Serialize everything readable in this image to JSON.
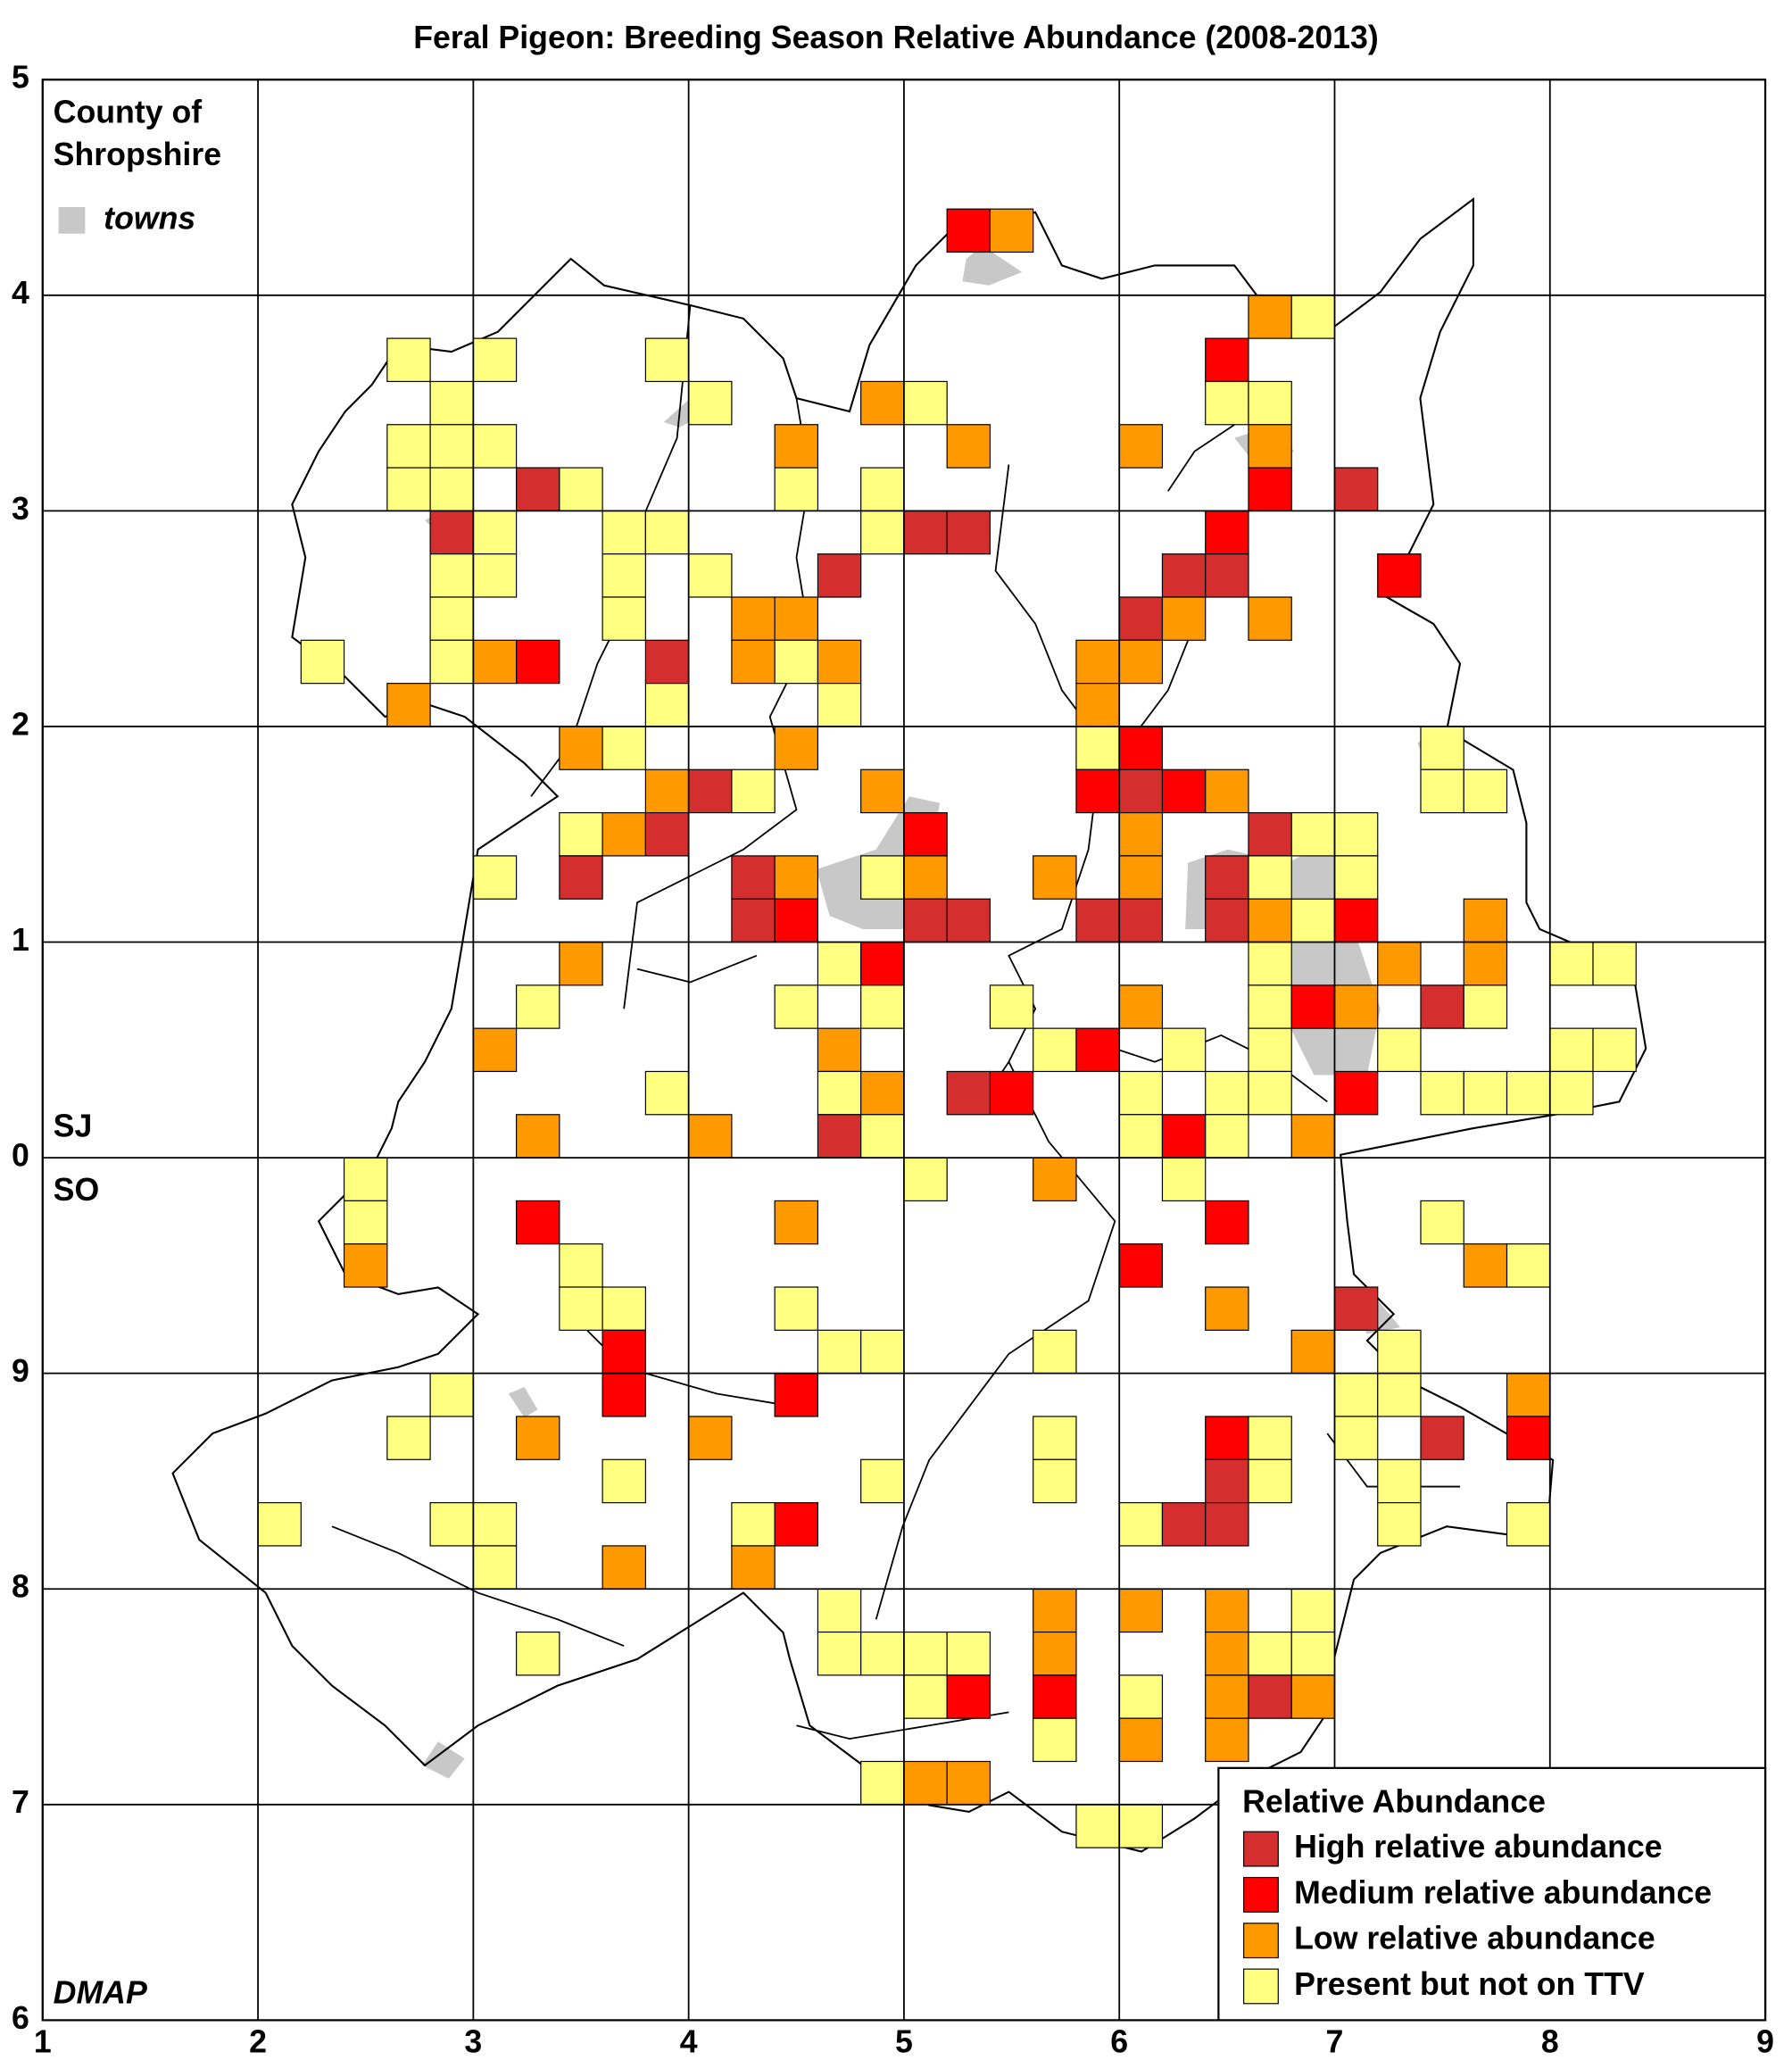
{
  "map": {
    "title": "Feral Pigeon: Breeding Season Relative Abundance (2008-2013)",
    "county_line1": "County of",
    "county_line2": "Shropshire",
    "towns_label": "towns",
    "grid_north": "SJ",
    "grid_south": "SO",
    "credit": "DMAP",
    "xticks": [
      "1",
      "2",
      "3",
      "4",
      "5",
      "6",
      "7",
      "8",
      "9"
    ],
    "yticks": [
      "5",
      "4",
      "3",
      "2",
      "1",
      "0",
      "9",
      "8",
      "7",
      "6"
    ],
    "legend": {
      "title": "Relative Abundance",
      "levels": [
        {
          "name": "High relative abundance",
          "color": "#d42e2e"
        },
        {
          "name": "Medium relative abundance",
          "color": "#ff0000"
        },
        {
          "name": "Low relative abundance",
          "color": "#ff9900"
        },
        {
          "name": "Present but not on TTV",
          "color": "#ffff80"
        }
      ]
    },
    "cells": [
      [
        21,
        3,
        1
      ],
      [
        22,
        3,
        2
      ],
      [
        28,
        5,
        2
      ],
      [
        29,
        5,
        3
      ],
      [
        8,
        6,
        3
      ],
      [
        10,
        6,
        3
      ],
      [
        14,
        6,
        3
      ],
      [
        27,
        6,
        1
      ],
      [
        9,
        7,
        3
      ],
      [
        15,
        7,
        3
      ],
      [
        19,
        7,
        2
      ],
      [
        20,
        7,
        3
      ],
      [
        27,
        7,
        3
      ],
      [
        28,
        7,
        3
      ],
      [
        8,
        8,
        3
      ],
      [
        9,
        8,
        3
      ],
      [
        10,
        8,
        3
      ],
      [
        17,
        8,
        2
      ],
      [
        21,
        8,
        2
      ],
      [
        25,
        8,
        2
      ],
      [
        28,
        8,
        2
      ],
      [
        8,
        9,
        3
      ],
      [
        9,
        9,
        3
      ],
      [
        11,
        9,
        0
      ],
      [
        12,
        9,
        3
      ],
      [
        17,
        9,
        3
      ],
      [
        19,
        9,
        3
      ],
      [
        28,
        9,
        1
      ],
      [
        30,
        9,
        0
      ],
      [
        9,
        10,
        0
      ],
      [
        10,
        10,
        3
      ],
      [
        13,
        10,
        3
      ],
      [
        14,
        10,
        3
      ],
      [
        19,
        10,
        3
      ],
      [
        20,
        10,
        0
      ],
      [
        21,
        10,
        0
      ],
      [
        27,
        10,
        1
      ],
      [
        9,
        11,
        3
      ],
      [
        10,
        11,
        3
      ],
      [
        13,
        11,
        3
      ],
      [
        15,
        11,
        3
      ],
      [
        18,
        11,
        0
      ],
      [
        26,
        11,
        0
      ],
      [
        27,
        11,
        0
      ],
      [
        31,
        11,
        1
      ],
      [
        9,
        12,
        3
      ],
      [
        13,
        12,
        3
      ],
      [
        16,
        12,
        2
      ],
      [
        17,
        12,
        2
      ],
      [
        25,
        12,
        0
      ],
      [
        26,
        12,
        2
      ],
      [
        28,
        12,
        2
      ],
      [
        6,
        13,
        3
      ],
      [
        9,
        13,
        3
      ],
      [
        10,
        13,
        2
      ],
      [
        11,
        13,
        1
      ],
      [
        14,
        13,
        0
      ],
      [
        16,
        13,
        2
      ],
      [
        17,
        13,
        3
      ],
      [
        18,
        13,
        2
      ],
      [
        24,
        13,
        2
      ],
      [
        25,
        13,
        2
      ],
      [
        8,
        14,
        2
      ],
      [
        14,
        14,
        3
      ],
      [
        18,
        14,
        3
      ],
      [
        24,
        14,
        2
      ],
      [
        12,
        15,
        2
      ],
      [
        13,
        15,
        3
      ],
      [
        17,
        15,
        2
      ],
      [
        24,
        15,
        3
      ],
      [
        25,
        15,
        1
      ],
      [
        32,
        15,
        3
      ],
      [
        14,
        16,
        2
      ],
      [
        15,
        16,
        0
      ],
      [
        16,
        16,
        3
      ],
      [
        19,
        16,
        2
      ],
      [
        24,
        16,
        1
      ],
      [
        25,
        16,
        0
      ],
      [
        26,
        16,
        1
      ],
      [
        27,
        16,
        2
      ],
      [
        32,
        16,
        3
      ],
      [
        33,
        16,
        3
      ],
      [
        12,
        17,
        3
      ],
      [
        13,
        17,
        2
      ],
      [
        14,
        17,
        0
      ],
      [
        20,
        17,
        1
      ],
      [
        25,
        17,
        2
      ],
      [
        28,
        17,
        0
      ],
      [
        29,
        17,
        3
      ],
      [
        30,
        17,
        3
      ],
      [
        10,
        18,
        3
      ],
      [
        12,
        18,
        0
      ],
      [
        16,
        18,
        0
      ],
      [
        17,
        18,
        2
      ],
      [
        19,
        18,
        3
      ],
      [
        20,
        18,
        2
      ],
      [
        23,
        18,
        2
      ],
      [
        25,
        18,
        2
      ],
      [
        27,
        18,
        0
      ],
      [
        28,
        18,
        3
      ],
      [
        30,
        18,
        3
      ],
      [
        16,
        19,
        0
      ],
      [
        17,
        19,
        1
      ],
      [
        20,
        19,
        0
      ],
      [
        21,
        19,
        0
      ],
      [
        24,
        19,
        0
      ],
      [
        25,
        19,
        0
      ],
      [
        27,
        19,
        0
      ],
      [
        28,
        19,
        2
      ],
      [
        29,
        19,
        3
      ],
      [
        30,
        19,
        1
      ],
      [
        33,
        19,
        2
      ],
      [
        12,
        20,
        2
      ],
      [
        18,
        20,
        3
      ],
      [
        19,
        20,
        1
      ],
      [
        28,
        20,
        3
      ],
      [
        31,
        20,
        2
      ],
      [
        33,
        20,
        2
      ],
      [
        35,
        20,
        3
      ],
      [
        36,
        20,
        3
      ],
      [
        11,
        21,
        3
      ],
      [
        17,
        21,
        3
      ],
      [
        19,
        21,
        3
      ],
      [
        22,
        21,
        3
      ],
      [
        25,
        21,
        2
      ],
      [
        28,
        21,
        3
      ],
      [
        29,
        21,
        1
      ],
      [
        30,
        21,
        2
      ],
      [
        32,
        21,
        0
      ],
      [
        33,
        21,
        3
      ],
      [
        10,
        22,
        2
      ],
      [
        18,
        22,
        2
      ],
      [
        23,
        22,
        3
      ],
      [
        24,
        22,
        1
      ],
      [
        26,
        22,
        3
      ],
      [
        28,
        22,
        3
      ],
      [
        31,
        22,
        3
      ],
      [
        35,
        22,
        3
      ],
      [
        36,
        22,
        3
      ],
      [
        14,
        23,
        3
      ],
      [
        18,
        23,
        3
      ],
      [
        19,
        23,
        2
      ],
      [
        21,
        23,
        0
      ],
      [
        22,
        23,
        1
      ],
      [
        25,
        23,
        3
      ],
      [
        27,
        23,
        3
      ],
      [
        28,
        23,
        3
      ],
      [
        30,
        23,
        1
      ],
      [
        32,
        23,
        3
      ],
      [
        33,
        23,
        3
      ],
      [
        34,
        23,
        3
      ],
      [
        35,
        23,
        3
      ],
      [
        11,
        24,
        2
      ],
      [
        15,
        24,
        2
      ],
      [
        18,
        24,
        0
      ],
      [
        19,
        24,
        3
      ],
      [
        25,
        24,
        3
      ],
      [
        26,
        24,
        1
      ],
      [
        27,
        24,
        3
      ],
      [
        29,
        24,
        2
      ],
      [
        7,
        25,
        3
      ],
      [
        20,
        25,
        3
      ],
      [
        23,
        25,
        2
      ],
      [
        26,
        25,
        3
      ],
      [
        7,
        26,
        3
      ],
      [
        11,
        26,
        1
      ],
      [
        17,
        26,
        2
      ],
      [
        27,
        26,
        1
      ],
      [
        32,
        26,
        3
      ],
      [
        7,
        27,
        2
      ],
      [
        12,
        27,
        3
      ],
      [
        25,
        27,
        1
      ],
      [
        33,
        27,
        2
      ],
      [
        34,
        27,
        3
      ],
      [
        12,
        28,
        3
      ],
      [
        13,
        28,
        3
      ],
      [
        17,
        28,
        3
      ],
      [
        27,
        28,
        2
      ],
      [
        30,
        28,
        0
      ],
      [
        13,
        29,
        1
      ],
      [
        18,
        29,
        3
      ],
      [
        19,
        29,
        3
      ],
      [
        23,
        29,
        3
      ],
      [
        29,
        29,
        2
      ],
      [
        31,
        29,
        3
      ],
      [
        9,
        30,
        3
      ],
      [
        13,
        30,
        1
      ],
      [
        17,
        30,
        1
      ],
      [
        30,
        30,
        3
      ],
      [
        31,
        30,
        3
      ],
      [
        34,
        30,
        2
      ],
      [
        8,
        31,
        3
      ],
      [
        11,
        31,
        2
      ],
      [
        15,
        31,
        2
      ],
      [
        23,
        31,
        3
      ],
      [
        27,
        31,
        1
      ],
      [
        28,
        31,
        3
      ],
      [
        30,
        31,
        3
      ],
      [
        32,
        31,
        0
      ],
      [
        34,
        31,
        1
      ],
      [
        13,
        32,
        3
      ],
      [
        19,
        32,
        3
      ],
      [
        23,
        32,
        3
      ],
      [
        27,
        32,
        0
      ],
      [
        28,
        32,
        3
      ],
      [
        31,
        32,
        3
      ],
      [
        5,
        33,
        3
      ],
      [
        9,
        33,
        3
      ],
      [
        10,
        33,
        3
      ],
      [
        16,
        33,
        3
      ],
      [
        17,
        33,
        1
      ],
      [
        25,
        33,
        3
      ],
      [
        26,
        33,
        0
      ],
      [
        27,
        33,
        0
      ],
      [
        31,
        33,
        3
      ],
      [
        34,
        33,
        3
      ],
      [
        10,
        34,
        3
      ],
      [
        13,
        34,
        2
      ],
      [
        16,
        34,
        2
      ],
      [
        18,
        35,
        3
      ],
      [
        23,
        35,
        2
      ],
      [
        25,
        35,
        2
      ],
      [
        27,
        35,
        2
      ],
      [
        29,
        35,
        3
      ],
      [
        11,
        36,
        3
      ],
      [
        18,
        36,
        3
      ],
      [
        19,
        36,
        3
      ],
      [
        20,
        36,
        3
      ],
      [
        21,
        36,
        3
      ],
      [
        23,
        36,
        2
      ],
      [
        27,
        36,
        2
      ],
      [
        28,
        36,
        3
      ],
      [
        29,
        36,
        3
      ],
      [
        20,
        37,
        3
      ],
      [
        21,
        37,
        1
      ],
      [
        23,
        37,
        1
      ],
      [
        25,
        37,
        3
      ],
      [
        27,
        37,
        2
      ],
      [
        28,
        37,
        0
      ],
      [
        29,
        37,
        2
      ],
      [
        23,
        38,
        3
      ],
      [
        25,
        38,
        2
      ],
      [
        27,
        38,
        2
      ],
      [
        19,
        39,
        3
      ],
      [
        20,
        39,
        2
      ],
      [
        21,
        39,
        2
      ],
      [
        24,
        40,
        3
      ],
      [
        25,
        40,
        3
      ]
    ]
  }
}
